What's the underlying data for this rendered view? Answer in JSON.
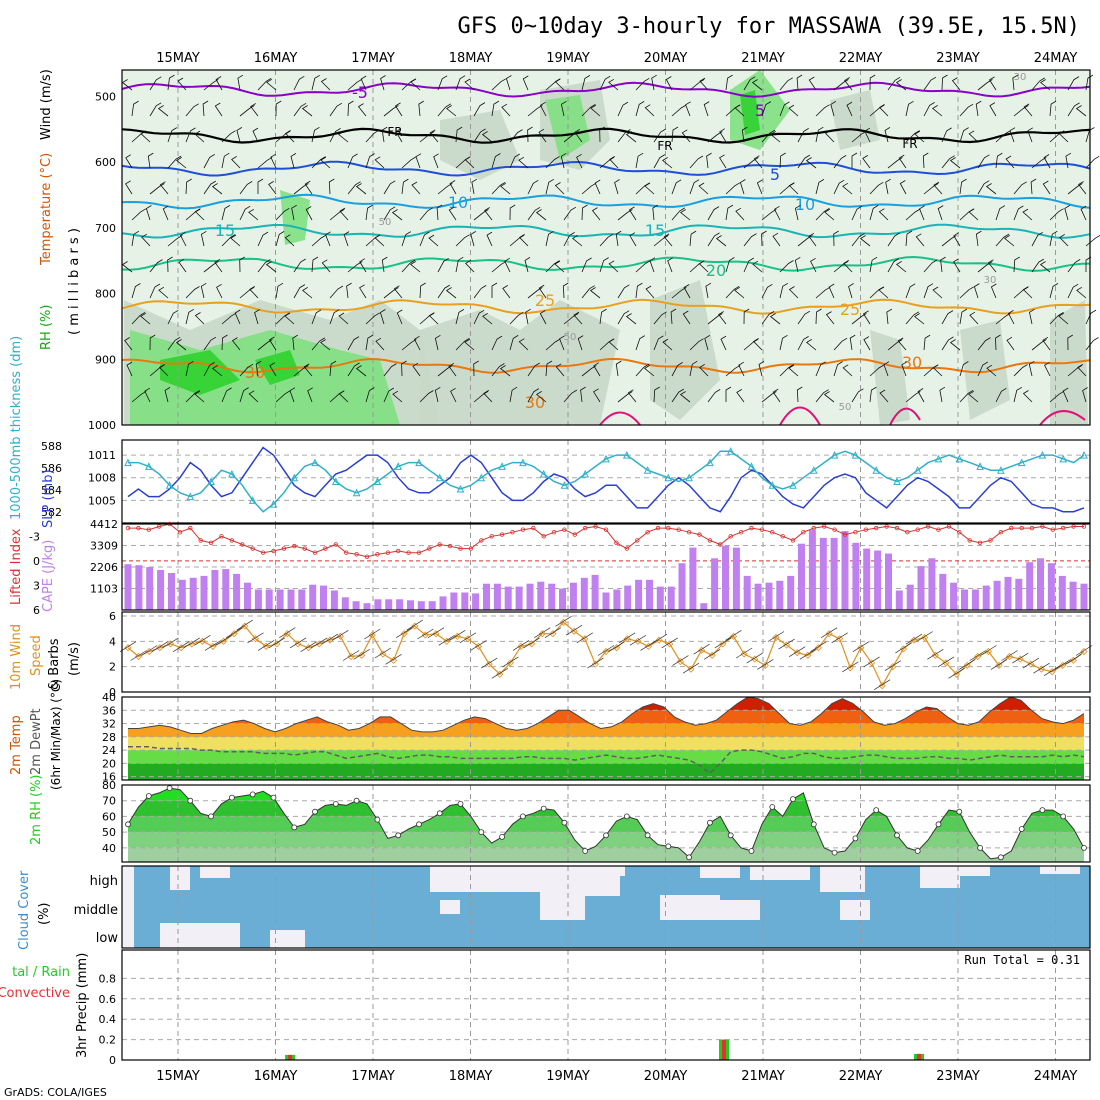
{
  "title": "GFS 0~10day 3-hourly for MASSAWA (39.5E, 15.5N)",
  "credit": "GrADS: COLA/IGES",
  "days": [
    "15MAY",
    "16MAY",
    "17MAY",
    "18MAY",
    "19MAY",
    "20MAY",
    "21MAY",
    "22MAY",
    "23MAY",
    "24MAY"
  ],
  "colors": {
    "purple": "#8a00c8",
    "black": "#000000",
    "blue": "#1f4fd8",
    "sky": "#1a9fe0",
    "teal": "#1ab4b4",
    "green": "#18c08a",
    "orange25": "#e8a020",
    "orange30": "#e87810",
    "magenta": "#e0107a",
    "rh1": "#e6f2e6",
    "rh2": "#c8d8c8",
    "rh3": "#7fe07f",
    "rh4": "#2fd22f",
    "slp": "#2a3fd0",
    "thick": "#30b0c8",
    "lifted": "#d83030",
    "cape": "#c080f0",
    "wind": "#e09020",
    "dew": "#606060",
    "rhgreen": "#22cc22",
    "cloud": "#6aaed6",
    "precip_total": "#22cc22",
    "precip_conv": "#e83030"
  },
  "chart_data": [
    {
      "type": "heatmap",
      "panel": "upper-air",
      "ylabel_parts": [
        "RH (%)",
        "Temperature (°C)",
        "Wind (m/s)"
      ],
      "ylabel2": "( m i l l i b a r s )",
      "yticks": [
        500,
        600,
        700,
        800,
        900,
        1000
      ],
      "ylim": [
        460,
        1000
      ],
      "isotherm_labels": [
        "-5",
        "FR",
        "FR",
        "FR",
        "5",
        "-5",
        "-5",
        "5",
        "10",
        "10",
        "15",
        "15",
        "20",
        "25",
        "25",
        "30",
        "30",
        "30",
        "50",
        "50",
        "50",
        "30",
        "30"
      ],
      "isotherms": [
        {
          "label": "-5",
          "level_mb": 490
        },
        {
          "label": "FR",
          "level_mb": 560
        },
        {
          "label": "-5",
          "level_mb": 610
        },
        {
          "label": "10",
          "level_mb": 660
        },
        {
          "label": "15",
          "level_mb": 705
        },
        {
          "label": "20",
          "level_mb": 755
        },
        {
          "label": "25",
          "level_mb": 820
        },
        {
          "label": "30",
          "level_mb": 910
        }
      ]
    },
    {
      "type": "line",
      "panel": "slp-thickness",
      "ylabel_left": "1000-500mb thickness (dm)",
      "ylabel_right": "SLP (mb)",
      "yticks_left": [
        582,
        584,
        586,
        588
      ],
      "yticks_right": [
        1005,
        1008,
        1011
      ],
      "ylim_slp": [
        1002,
        1013
      ],
      "series": [
        {
          "name": "SLP",
          "values": [
            1005.5,
            1006.5,
            1005.5,
            1005.5,
            1006.5,
            1008,
            1010,
            1009,
            1007,
            1005.5,
            1006,
            1008,
            1010,
            1012,
            1011,
            1009,
            1007,
            1006,
            1005.5,
            1007,
            1008.5,
            1009,
            1010,
            1011,
            1011,
            1010,
            1008,
            1006.5,
            1006,
            1006,
            1007,
            1008,
            1010,
            1011,
            1010,
            1008,
            1006,
            1005,
            1005,
            1006,
            1007.5,
            1008.5,
            1008,
            1006.5,
            1005.5,
            1006,
            1007,
            1007,
            1005.5,
            1004,
            1004,
            1005.5,
            1007,
            1008,
            1007,
            1005.5,
            1004,
            1003.5,
            1005.5,
            1008,
            1009,
            1008.5,
            1007,
            1005.5,
            1004.5,
            1004,
            1005.5,
            1007,
            1008,
            1008.5,
            1008,
            1006,
            1005,
            1004,
            1005.5,
            1007,
            1008,
            1007.5,
            1006.5,
            1005.5,
            1004,
            1004,
            1005.5,
            1007,
            1008,
            1007.5,
            1006,
            1004.5,
            1004,
            1004,
            1003.5,
            1003.5,
            1004
          ]
        },
        {
          "name": "Thickness",
          "values": [
            1010,
            1010,
            1009.5,
            1008.5,
            1007,
            1006,
            1005.5,
            1006,
            1007.5,
            1009,
            1008.5,
            1007,
            1005,
            1003.5,
            1004.5,
            1006,
            1008,
            1009.5,
            1010,
            1009,
            1007.5,
            1006.5,
            1006,
            1006.5,
            1007.5,
            1008.5,
            1009.5,
            1010,
            1010,
            1009,
            1008,
            1007,
            1006.5,
            1007,
            1008,
            1009,
            1009.5,
            1010,
            1010,
            1009.5,
            1008.5,
            1007.5,
            1007,
            1007.5,
            1008.5,
            1009.5,
            1010.5,
            1011,
            1011,
            1010,
            1009,
            1008.5,
            1008,
            1007.5,
            1008,
            1009,
            1010,
            1011.5,
            1011.5,
            1010.5,
            1009.5,
            1008,
            1007,
            1006.5,
            1007,
            1008,
            1009,
            1010,
            1011,
            1011.5,
            1011,
            1010,
            1009,
            1008,
            1007.5,
            1008,
            1009,
            1010,
            1010.5,
            1011,
            1010.5,
            1010,
            1009.5,
            1009,
            1009,
            1009.5,
            1010,
            1010.5,
            1011,
            1011,
            1010.5,
            1010,
            1011
          ]
        }
      ]
    },
    {
      "type": "bar",
      "panel": "lifted-cape",
      "ylabel_left": "Lifted Index",
      "ylabel_right": "CAPE (J/kg)",
      "yticks_left": [
        -3,
        0,
        3,
        6
      ],
      "yticks_right": [
        1103,
        2206,
        3309,
        4412
      ],
      "ylim_cape": [
        0,
        4412
      ],
      "cape_values": [
        2350,
        2300,
        2200,
        2050,
        1900,
        1550,
        1650,
        1750,
        2050,
        2100,
        1850,
        1400,
        1050,
        1050,
        1050,
        1050,
        1050,
        1300,
        1250,
        1000,
        650,
        450,
        350,
        550,
        550,
        550,
        500,
        450,
        450,
        700,
        900,
        900,
        850,
        1350,
        1350,
        1200,
        1200,
        1350,
        1450,
        1350,
        1100,
        1400,
        1650,
        1800,
        900,
        1050,
        1250,
        1550,
        1550,
        1200,
        1200,
        2400,
        3200,
        350,
        2650,
        3300,
        3200,
        1750,
        1350,
        1400,
        1500,
        1750,
        3400,
        4100,
        3700,
        3700,
        4050,
        3450,
        3150,
        3050,
        2900,
        1000,
        1300,
        2250,
        2650,
        1850,
        1400,
        1050,
        1050,
        1250,
        1500,
        1700,
        1600,
        2450,
        2650,
        2400,
        1750,
        1450,
        1350
      ],
      "lifted_values": [
        -4,
        -4,
        -3.8,
        -4.2,
        -4.5,
        -3.5,
        -4,
        -2.5,
        -2.2,
        -3,
        -2.5,
        -2,
        -1.5,
        -1,
        -1.2,
        -1.5,
        -1.8,
        -1.5,
        -1,
        -1.5,
        -2,
        -1,
        -0.8,
        -0.5,
        -0.8,
        -1,
        -1.2,
        -1,
        -1,
        -1.5,
        -2,
        -1.8,
        -1.5,
        -1.5,
        -2.5,
        -3,
        -3.2,
        -3.5,
        -3.8,
        -4,
        -3,
        -3.5,
        -3.8,
        -3.2,
        -4,
        -4.2,
        -3.8,
        -2.2,
        -1.5,
        -2.5,
        -3.5,
        -4,
        -4,
        -3.8,
        -3.5,
        -3.2,
        -2.5,
        -2,
        -3,
        -3.5,
        -4,
        -3.8,
        -3.5,
        -3,
        -2.5,
        -3.5,
        -4,
        -4.2,
        -3.8,
        -3.2,
        -3.5,
        -3.8,
        -4,
        -4.2,
        -4,
        -3.5,
        -3.8,
        -4.2,
        -3.8,
        -4.2,
        -3.5,
        -2.5,
        -2.2,
        -2.5,
        -3.5,
        -4,
        -4,
        -4,
        -4.2,
        -3.8,
        -4,
        -4.2,
        -4.2
      ]
    },
    {
      "type": "line",
      "panel": "wind10m",
      "ylabel": "10m Wind Speed & Barbs (m/s)",
      "ylabel_parts": [
        "10m Wind",
        "Speed",
        "& Barbs",
        "(m/s)"
      ],
      "yticks": [
        0,
        2,
        4,
        6
      ],
      "ylim": [
        0,
        6
      ],
      "series": [
        {
          "name": "Speed",
          "values": [
            3.5,
            2.8,
            3.2,
            3.5,
            3.8,
            3.5,
            3.8,
            4,
            3.6,
            4,
            4.6,
            5.2,
            4.2,
            3.6,
            3.8,
            4.6,
            3.8,
            3.5,
            3.8,
            4.1,
            4.4,
            2.8,
            2.9,
            4.5,
            3,
            2.5,
            4.6,
            5.2,
            4.5,
            4.6,
            4,
            4.4,
            4.2,
            3.6,
            2.2,
            1.4,
            2.3,
            3.6,
            3.8,
            4.6,
            4.6,
            5.5,
            4.8,
            4.2,
            2.2,
            3.2,
            3.5,
            4.2,
            4,
            3.6,
            4.1,
            3.8,
            2.4,
            1.8,
            3.3,
            2.9,
            3.8,
            4.4,
            3,
            2.6,
            2.1,
            4.3,
            3.7,
            3.1,
            2.9,
            3.5,
            4.6,
            4.2,
            1.9,
            3.5,
            2.3,
            0.5,
            2,
            3.4,
            4.1,
            4.3,
            2.9,
            2.3,
            1.4,
            2.1,
            2.8,
            3.2,
            2.1,
            2.8,
            2.6,
            2.2,
            1.8,
            1.6,
            2.1,
            2.5,
            3.2
          ]
        }
      ]
    },
    {
      "type": "area",
      "panel": "temp2m",
      "ylabel_parts": [
        "2m Temp",
        "2m DewPt",
        "(6hr Min/Max) (°C)"
      ],
      "yticks": [
        16,
        20,
        24,
        28,
        32,
        36,
        40
      ],
      "ylim": [
        15,
        40
      ],
      "series": [
        {
          "name": "2m Temp",
          "values": [
            30.5,
            30.5,
            31,
            31.5,
            31,
            30,
            29,
            29,
            30.5,
            31.5,
            32.5,
            33,
            32,
            30.5,
            29.5,
            30.5,
            32,
            33,
            34,
            32.5,
            31.5,
            30,
            30.5,
            32,
            34,
            34,
            32,
            30,
            29.5,
            29.5,
            30,
            31.5,
            33,
            34,
            33.5,
            32,
            30.5,
            30,
            30.5,
            32,
            34,
            36,
            36,
            34,
            32,
            30.5,
            31,
            32.5,
            35,
            37,
            38,
            37,
            34,
            32.5,
            31.5,
            32,
            33,
            35.5,
            38,
            40,
            39.5,
            38,
            35,
            32,
            31.5,
            32.5,
            35,
            38,
            39.5,
            38,
            35.5,
            32.5,
            31.5,
            32,
            33.5,
            35.5,
            37,
            36.5,
            34,
            32,
            31.5,
            32.5,
            35.5,
            38,
            40,
            39,
            36,
            33.5,
            32.5,
            32,
            33,
            35
          ]
        },
        {
          "name": "2m DewPt",
          "values": [
            25,
            25,
            25,
            24.5,
            24.5,
            24.5,
            24.5,
            24,
            24,
            23.5,
            23.5,
            23.5,
            23.5,
            23,
            23,
            23,
            22.5,
            23,
            23.5,
            23.5,
            22.5,
            21.5,
            22,
            22.5,
            23,
            22,
            21.5,
            22,
            22.5,
            22.5,
            22,
            22,
            21.5,
            21.5,
            21.5,
            21.5,
            21.5,
            21.5,
            22,
            22,
            21.5,
            21.5,
            21.5,
            21,
            21.5,
            22,
            22.5,
            22,
            21.5,
            21.5,
            22,
            22.5,
            22,
            21.5,
            21,
            19.5,
            17,
            20,
            23.5,
            24,
            24,
            23.5,
            22.5,
            21.5,
            22,
            23,
            23,
            22,
            21.5,
            21.5,
            22,
            22.5,
            22.5,
            22,
            21.5,
            21.5,
            21.5,
            22,
            22,
            21.5,
            21.5,
            21,
            21.5,
            22,
            22.5,
            22,
            22,
            22,
            22,
            22.5,
            22,
            22.5,
            22
          ]
        }
      ]
    },
    {
      "type": "area",
      "panel": "rh2m",
      "ylabel": "2m RH (%)",
      "yticks": [
        40,
        50,
        60,
        70,
        80
      ],
      "ylim": [
        31,
        80
      ],
      "series": [
        {
          "name": "2m RH",
          "values": [
            55,
            66,
            73,
            75,
            78,
            77,
            70,
            62,
            60,
            68,
            72,
            73,
            74,
            76,
            72,
            62,
            53,
            55,
            63,
            67,
            68,
            67,
            70,
            68,
            58,
            46,
            48,
            52,
            55,
            58,
            62,
            67,
            68,
            60,
            50,
            43,
            47,
            55,
            60,
            62,
            65,
            64,
            56,
            45,
            38,
            41,
            48,
            57,
            60,
            58,
            48,
            42,
            41,
            40,
            34,
            44,
            56,
            60,
            48,
            40,
            38,
            55,
            66,
            60,
            71,
            75,
            55,
            40,
            37,
            38,
            46,
            58,
            64,
            60,
            48,
            40,
            38,
            45,
            55,
            64,
            63,
            50,
            40,
            33,
            34,
            38,
            52,
            62,
            64,
            64,
            60,
            52,
            40
          ]
        }
      ]
    },
    {
      "type": "heatmap",
      "panel": "cloud",
      "ylabel": "Cloud Cover (%)",
      "ylabel_parts": [
        "Cloud Cover",
        "(%)"
      ],
      "yticks": [
        "high",
        "middle",
        "low"
      ]
    },
    {
      "type": "bar",
      "panel": "precip",
      "ylabel": "3hr Precip (mm)",
      "legend": [
        "tal / Rain",
        "Convective"
      ],
      "yticks": [
        0,
        0.2,
        0.4,
        0.6,
        0.8
      ],
      "ylim": [
        0,
        1
      ],
      "run_total_label": "Run Total = 0.31",
      "bars": [
        {
          "day_index": 1.15,
          "total": 0.05,
          "convective": 0.05
        },
        {
          "day_index": 5.6,
          "total": 0.2,
          "convective": 0.2
        },
        {
          "day_index": 7.6,
          "total": 0.06,
          "convective": 0.06
        }
      ]
    }
  ]
}
